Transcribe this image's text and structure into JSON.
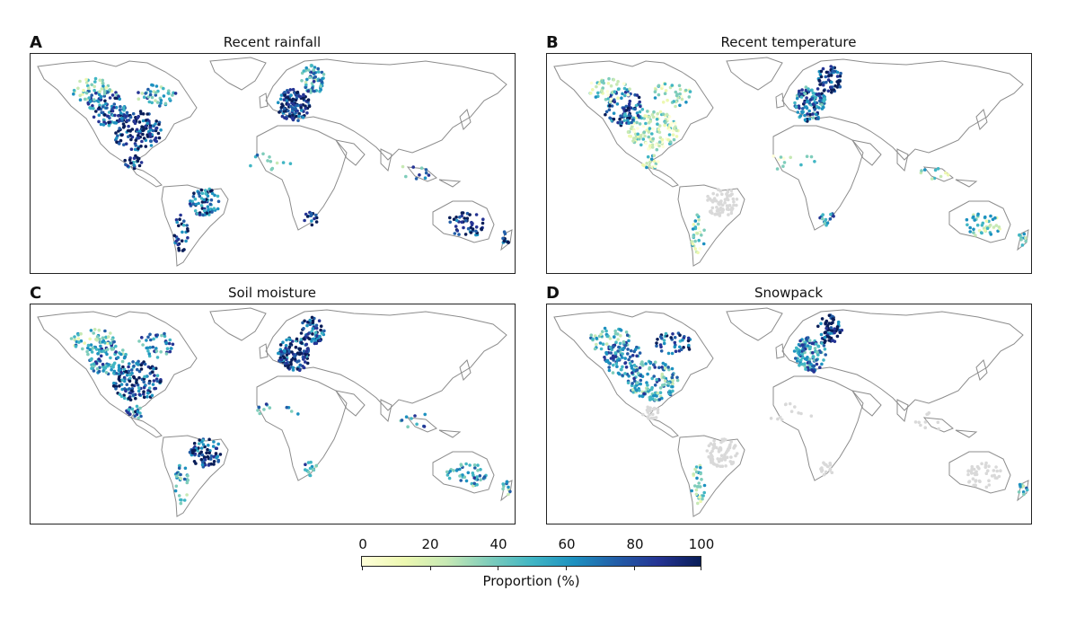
{
  "panels": [
    {
      "letter": "A",
      "title": "Recent rainfall",
      "variable": "rainfall"
    },
    {
      "letter": "B",
      "title": "Recent temperature",
      "variable": "temperature"
    },
    {
      "letter": "C",
      "title": "Soil moisture",
      "variable": "soil"
    },
    {
      "letter": "D",
      "title": "Snowpack",
      "variable": "snow"
    }
  ],
  "colorbar": {
    "label": "Proportion (%)",
    "ticks": [
      "0",
      "20",
      "40",
      "60",
      "80",
      "100"
    ],
    "min": 0,
    "max": 100,
    "colormap": "YlGnBu",
    "colors": [
      "#ffffd9",
      "#edf8b1",
      "#c7e9b4",
      "#7fcdbb",
      "#41b6c4",
      "#1d91c0",
      "#225ea8",
      "#253494",
      "#081d58"
    ],
    "no_data_color": "#d9d9d9"
  },
  "map": {
    "coastline_color": "#8c8c8c",
    "projection": "Robinson-like world"
  }
}
